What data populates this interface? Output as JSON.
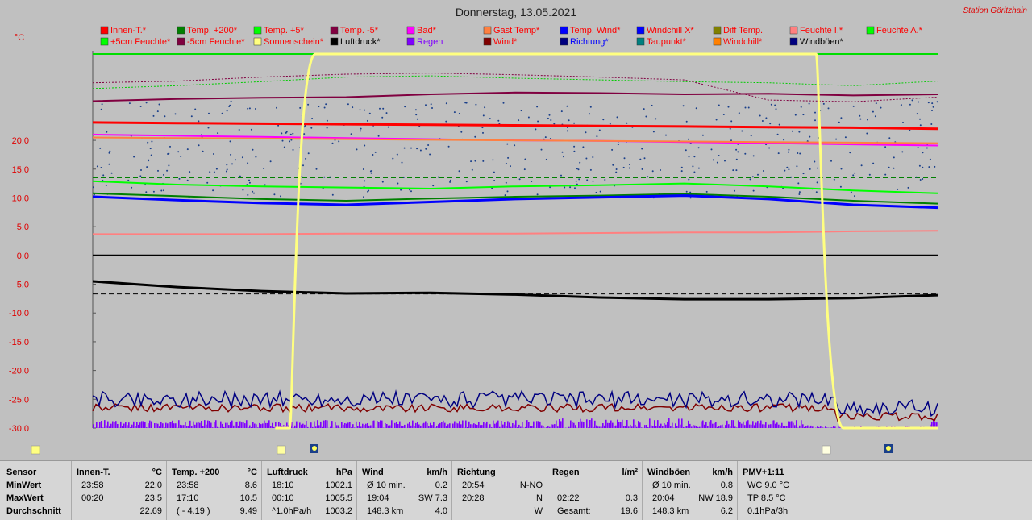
{
  "chart_data": {
    "type": "line",
    "title": "Donnerstag, 13.05.2021",
    "station": "Station Göritzhain",
    "ylabel": "°C",
    "ylim": [
      -30,
      35
    ],
    "yticks": [
      "20.0",
      "15.0",
      "10.0",
      "5.0",
      "0.0",
      "-5.0",
      "-10.0",
      "-15.0",
      "-20.0",
      "-25.0",
      "-30.0"
    ],
    "ytick_values": [
      20,
      15,
      10,
      5,
      0,
      -5,
      -10,
      -15,
      -20,
      -25,
      -30
    ],
    "legend": [
      {
        "label": "Innen-T.*",
        "color": "#ff0000",
        "text": "#ff0000"
      },
      {
        "label": "Temp. +200*",
        "color": "#008000",
        "text": "#ff0000"
      },
      {
        "label": "Temp. +5*",
        "color": "#00ff00",
        "text": "#ff0000"
      },
      {
        "label": "Temp. -5*",
        "color": "#800040",
        "text": "#ff0000"
      },
      {
        "label": "Bad*",
        "color": "#ff00ff",
        "text": "#ff0000"
      },
      {
        "label": "Gast Temp*",
        "color": "#ff8040",
        "text": "#ff0000"
      },
      {
        "label": "Temp. Wind*",
        "color": "#0000ff",
        "text": "#ff0000"
      },
      {
        "label": "Windchill X*",
        "color": "#0000ff",
        "text": "#ff0000"
      },
      {
        "label": "Diff Temp.",
        "color": "#808000",
        "text": "#ff0000"
      },
      {
        "label": "Feuchte I.*",
        "color": "#ff8080",
        "text": "#ff0000"
      },
      {
        "label": "Feuchte A.*",
        "color": "#00ff00",
        "text": "#ff0000"
      },
      {
        "label": "+5cm Feuchte*",
        "color": "#00ff00",
        "text": "#ff0000"
      },
      {
        "label": "-5cm Feuchte*",
        "color": "#800040",
        "text": "#ff0000"
      },
      {
        "label": "Sonnenschein*",
        "color": "#ffff80",
        "text": "#ff0000"
      },
      {
        "label": "Luftdruck*",
        "color": "#000000",
        "text": "#000000"
      },
      {
        "label": "Regen",
        "color": "#8000ff",
        "text": "#8000ff"
      },
      {
        "label": "Wind*",
        "color": "#800000",
        "text": "#ff0000"
      },
      {
        "label": "Richtung*",
        "color": "#000080",
        "text": "#0000ff"
      },
      {
        "label": "Taupunkt*",
        "color": "#008080",
        "text": "#ff0000"
      },
      {
        "label": "Windchill*",
        "color": "#ff8000",
        "text": "#ff0000"
      },
      {
        "label": "Windböen*",
        "color": "#000080",
        "text": "#000000"
      }
    ],
    "series": [
      {
        "color": "#ff0000",
        "width": 3,
        "values": [
          23.1,
          23.0,
          22.9,
          22.8,
          22.7,
          22.6,
          22.5,
          22.4,
          22.3,
          22.2,
          22.0
        ]
      },
      {
        "color": "#ff00ff",
        "width": 2,
        "values": [
          21.0,
          20.8,
          20.6,
          20.4,
          20.2,
          20.0,
          19.9,
          19.7,
          19.5,
          19.3,
          19.1
        ]
      },
      {
        "color": "#ff8040",
        "width": 2,
        "values": [
          20.5,
          20.4,
          20.3,
          20.2,
          20.1,
          20.0,
          19.9,
          19.8,
          19.7,
          19.6,
          19.5
        ]
      },
      {
        "color": "#800040",
        "width": 2,
        "values": [
          26.8,
          27.2,
          27.4,
          27.5,
          28.0,
          28.3,
          28.2,
          28.0,
          28.1,
          27.8,
          28.0
        ]
      },
      {
        "color": "#00ff00",
        "width": 2,
        "values": [
          12.9,
          12.3,
          12.0,
          11.8,
          11.6,
          12.0,
          12.2,
          12.5,
          12.0,
          11.3,
          10.8
        ]
      },
      {
        "color": "#008000",
        "width": 2,
        "values": [
          10.8,
          10.3,
          9.8,
          9.5,
          9.9,
          10.2,
          10.4,
          10.7,
          10.2,
          9.5,
          9.0
        ]
      },
      {
        "color": "#0000ff",
        "width": 3,
        "values": [
          10.2,
          9.6,
          9.1,
          8.8,
          9.3,
          9.8,
          10.1,
          10.4,
          9.8,
          8.8,
          8.3
        ]
      },
      {
        "color": "#ff8080",
        "width": 2,
        "values": [
          3.7,
          3.7,
          3.7,
          3.8,
          3.8,
          3.8,
          3.9,
          4.0,
          4.0,
          4.2,
          4.3
        ]
      },
      {
        "color": "#000000",
        "width": 2,
        "values": [
          0.0,
          0.0,
          0.0,
          0.0,
          0.0,
          0.0,
          0.0,
          0.0,
          0.0,
          0.0,
          0.0
        ]
      },
      {
        "color": "#000000",
        "width": 3,
        "values": [
          -4.5,
          -5.5,
          -6.2,
          -6.6,
          -6.5,
          -6.8,
          -7.3,
          -7.6,
          -7.6,
          -7.4,
          -6.9
        ]
      }
    ],
    "sunshine_level": 35,
    "sunshine_segment": {
      "rise_x_frac": 0.235,
      "set_x_frac": 0.86
    },
    "max_line": 35
  },
  "table": {
    "rows": [
      "Sensor",
      "MinWert",
      "MaxWert",
      "Durchschnitt"
    ],
    "groups": [
      {
        "name": "Innen-T.",
        "unit": "°C",
        "min_time": "23:58",
        "min": "22.0",
        "max_time": "00:20",
        "max": "23.5",
        "avg_label": "",
        "avg": "22.69"
      },
      {
        "name": "Temp. +200",
        "unit": "°C",
        "min_time": "23:58",
        "min": "8.6",
        "max_time": "17:10",
        "max": "10.5",
        "avg_label": "( - 4.19 )",
        "avg": "9.49"
      },
      {
        "name": "Luftdruck",
        "unit": "hPa",
        "min_time": "18:10",
        "min": "1002.1",
        "max_time": "00:10",
        "max": "1005.5",
        "avg_label": "^1.0hPa/h",
        "avg": "1003.2"
      },
      {
        "name": "Wind",
        "unit": "km/h",
        "min_time": "Ø 10 min.",
        "min": "0.2",
        "max_time": "19:04",
        "max": "SW 7.3",
        "avg_label": "148.3 km",
        "avg": "4.0"
      },
      {
        "name": "Richtung",
        "unit": "",
        "min_time": "20:54",
        "min": "N-NO",
        "max_time": "20:28",
        "max": "N",
        "avg_label": "",
        "avg": "W"
      },
      {
        "name": "Regen",
        "unit": "l/m²",
        "min_time": "",
        "min": "",
        "max_time": "02:22",
        "max": "0.3",
        "avg_label": "Gesamt:",
        "avg": "19.6"
      },
      {
        "name": "Windböen",
        "unit": "km/h",
        "min_time": "Ø 10 min.",
        "min": "0.8",
        "max_time": "20:04",
        "max": "NW 18.9",
        "avg_label": "148.3 km",
        "avg": "6.2"
      },
      {
        "name": "PMV+1:11",
        "unit": "",
        "min_time": "WC 9.0 °C",
        "min": "",
        "max_time": "TP 8.5 °C",
        "max": "",
        "avg_label": "0.1hPa/3h",
        "avg": ""
      }
    ]
  }
}
